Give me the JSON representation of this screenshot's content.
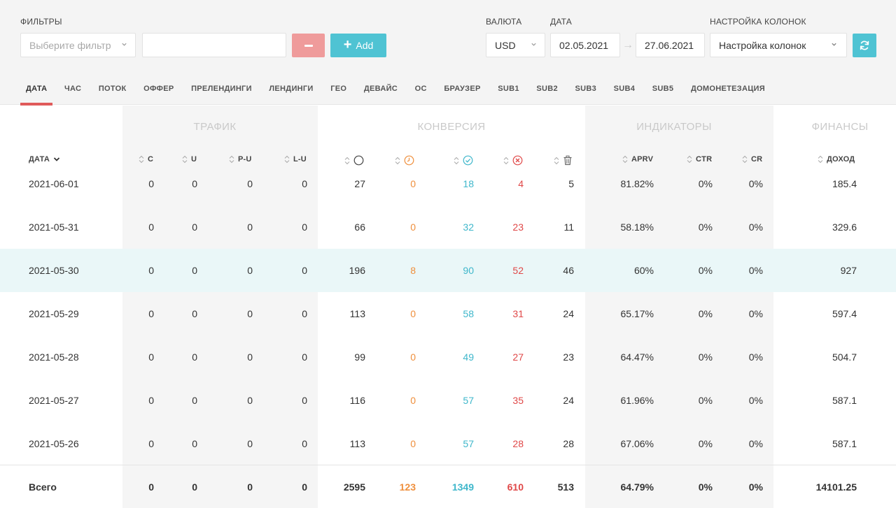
{
  "filters": {
    "label": "ФИЛЬТРЫ",
    "select_placeholder": "Выберите фильтр",
    "value_input": "",
    "add_label": "Add"
  },
  "currency": {
    "label": "ВАЛЮТА",
    "value": "USD"
  },
  "date": {
    "label": "ДАТА",
    "from": "02.05.2021",
    "to": "27.06.2021"
  },
  "columns_setting": {
    "label": "НАСТРОЙКА КОЛОНОК",
    "value": "Настройка колонок"
  },
  "tabs": [
    "ДАТА",
    "ЧАС",
    "ПОТОК",
    "ОФФЕР",
    "ПРЕЛЕНДИНГИ",
    "ЛЕНДИНГИ",
    "ГЕО",
    "ДЕВАЙС",
    "ОС",
    "БРАУЗЕР",
    "SUB1",
    "SUB2",
    "SUB3",
    "SUB4",
    "SUB5",
    "ДОМОНЕТЕЗАЦИЯ"
  ],
  "active_tab": "ДАТА",
  "groups": {
    "traffic": "ТРАФИК",
    "conversion": "КОНВЕРСИЯ",
    "indicators": "ИНДИКАТОРЫ",
    "finance": "ФИНАНСЫ"
  },
  "headers": {
    "date": "ДАТА",
    "c": "C",
    "u": "U",
    "pu": "P-U",
    "lu": "L-U",
    "aprv": "APRV",
    "ctr": "CTR",
    "cr": "CR",
    "income": "ДОХОД"
  },
  "conversion_icons": [
    "circle-icon",
    "clock-icon",
    "check-circle-icon",
    "x-circle-icon",
    "trash-icon"
  ],
  "colors": {
    "orange": "#ef8f3c",
    "blue": "#3fb7cb",
    "red": "#e04848",
    "accent": "#4fc3d3",
    "active_tab_underline": "#e05a5a"
  },
  "rows": [
    [
      "2021-06-01",
      "0",
      "0",
      "0",
      "0",
      "27",
      "0",
      "18",
      "4",
      "5",
      "81.82%",
      "0%",
      "0%",
      "185.4"
    ],
    [
      "2021-05-31",
      "0",
      "0",
      "0",
      "0",
      "66",
      "0",
      "32",
      "23",
      "11",
      "58.18%",
      "0%",
      "0%",
      "329.6"
    ],
    [
      "2021-05-30",
      "0",
      "0",
      "0",
      "0",
      "196",
      "8",
      "90",
      "52",
      "46",
      "60%",
      "0%",
      "0%",
      "927"
    ],
    [
      "2021-05-29",
      "0",
      "0",
      "0",
      "0",
      "113",
      "0",
      "58",
      "31",
      "24",
      "65.17%",
      "0%",
      "0%",
      "597.4"
    ],
    [
      "2021-05-28",
      "0",
      "0",
      "0",
      "0",
      "99",
      "0",
      "49",
      "27",
      "23",
      "64.47%",
      "0%",
      "0%",
      "504.7"
    ],
    [
      "2021-05-27",
      "0",
      "0",
      "0",
      "0",
      "116",
      "0",
      "57",
      "35",
      "24",
      "61.96%",
      "0%",
      "0%",
      "587.1"
    ],
    [
      "2021-05-26",
      "0",
      "0",
      "0",
      "0",
      "113",
      "0",
      "57",
      "28",
      "28",
      "67.06%",
      "0%",
      "0%",
      "587.1"
    ]
  ],
  "total": [
    "Всего",
    "0",
    "0",
    "0",
    "0",
    "2595",
    "123",
    "1349",
    "610",
    "513",
    "64.79%",
    "0%",
    "0%",
    "14101.25"
  ]
}
